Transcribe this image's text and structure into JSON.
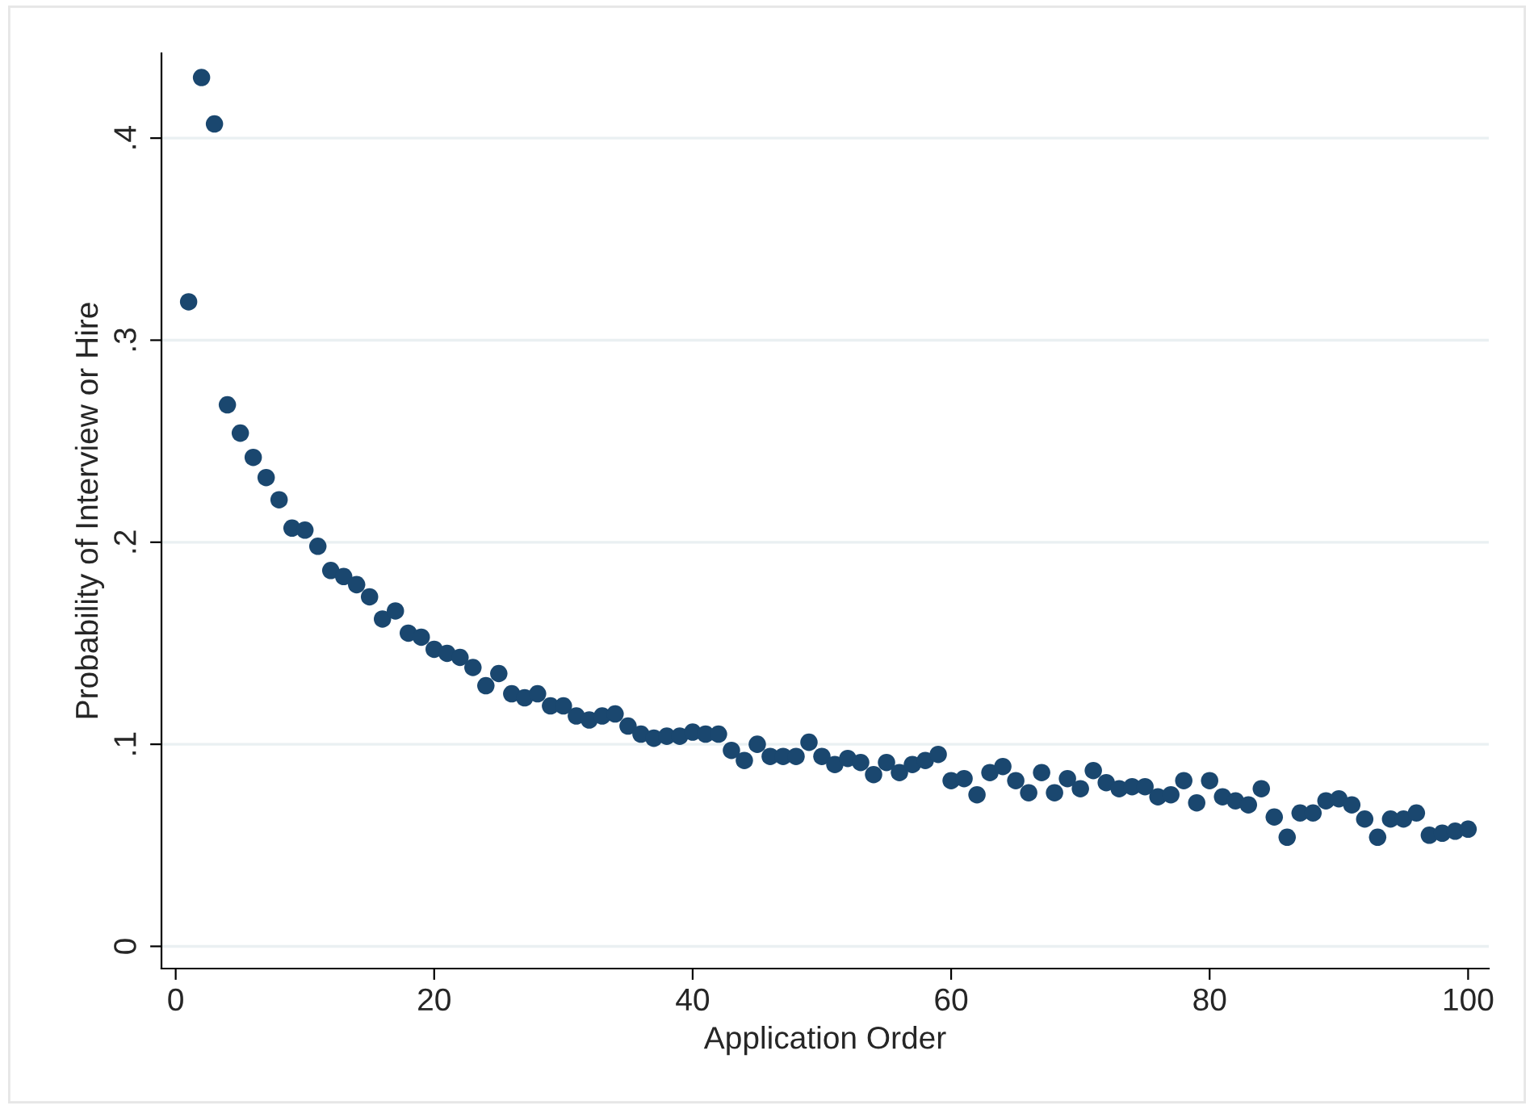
{
  "chart_data": {
    "type": "scatter",
    "xlabel": "Application Order",
    "ylabel": "Probability of Interview or Hire",
    "x": [
      1,
      2,
      3,
      4,
      5,
      6,
      7,
      8,
      9,
      10,
      11,
      12,
      13,
      14,
      15,
      16,
      17,
      18,
      19,
      20,
      21,
      22,
      23,
      24,
      25,
      26,
      27,
      28,
      29,
      30,
      31,
      32,
      33,
      34,
      35,
      36,
      37,
      38,
      39,
      40,
      41,
      42,
      43,
      44,
      45,
      46,
      47,
      48,
      49,
      50,
      51,
      52,
      53,
      54,
      55,
      56,
      57,
      58,
      59,
      60,
      61,
      62,
      63,
      64,
      65,
      66,
      67,
      68,
      69,
      70,
      71,
      72,
      73,
      74,
      75,
      76,
      77,
      78,
      79,
      80,
      81,
      82,
      83,
      84,
      85,
      86,
      87,
      88,
      89,
      90,
      91,
      92,
      93,
      94,
      95,
      96,
      97,
      98,
      99,
      100
    ],
    "series": [
      {
        "color": "#1a476f",
        "values": [
          0.319,
          0.43,
          0.407,
          0.268,
          0.254,
          0.242,
          0.232,
          0.221,
          0.207,
          0.206,
          0.198,
          0.186,
          0.183,
          0.179,
          0.173,
          0.162,
          0.166,
          0.155,
          0.153,
          0.147,
          0.145,
          0.143,
          0.138,
          0.129,
          0.135,
          0.125,
          0.123,
          0.125,
          0.119,
          0.119,
          0.114,
          0.112,
          0.114,
          0.115,
          0.109,
          0.105,
          0.103,
          0.104,
          0.104,
          0.106,
          0.105,
          0.105,
          0.097,
          0.092,
          0.1,
          0.094,
          0.094,
          0.094,
          0.101,
          0.094,
          0.09,
          0.093,
          0.091,
          0.085,
          0.091,
          0.086,
          0.09,
          0.092,
          0.095,
          0.082,
          0.083,
          0.075,
          0.086,
          0.089,
          0.082,
          0.076,
          0.086,
          0.076,
          0.083,
          0.078,
          0.087,
          0.081,
          0.078,
          0.079,
          0.079,
          0.074,
          0.075,
          0.082,
          0.071,
          0.082,
          0.074,
          0.072,
          0.07,
          0.078,
          0.064,
          0.054,
          0.066,
          0.066,
          0.072,
          0.073,
          0.07,
          0.063,
          0.054,
          0.063,
          0.063,
          0.066,
          0.055,
          0.056,
          0.057,
          0.058
        ]
      }
    ],
    "xlim": [
      -1.1,
      101.6
    ],
    "xticks": [
      0,
      20,
      40,
      60,
      80,
      100
    ],
    "ylim": [
      -0.011,
      0.442
    ],
    "yticks": [
      {
        "value": 0,
        "label": "0"
      },
      {
        "value": 0.1,
        "label": ".1"
      },
      {
        "value": 0.2,
        "label": ".2"
      },
      {
        "value": 0.3,
        "label": ".3"
      },
      {
        "value": 0.4,
        "label": ".4"
      }
    ],
    "grid": "y",
    "marker": "circle"
  }
}
